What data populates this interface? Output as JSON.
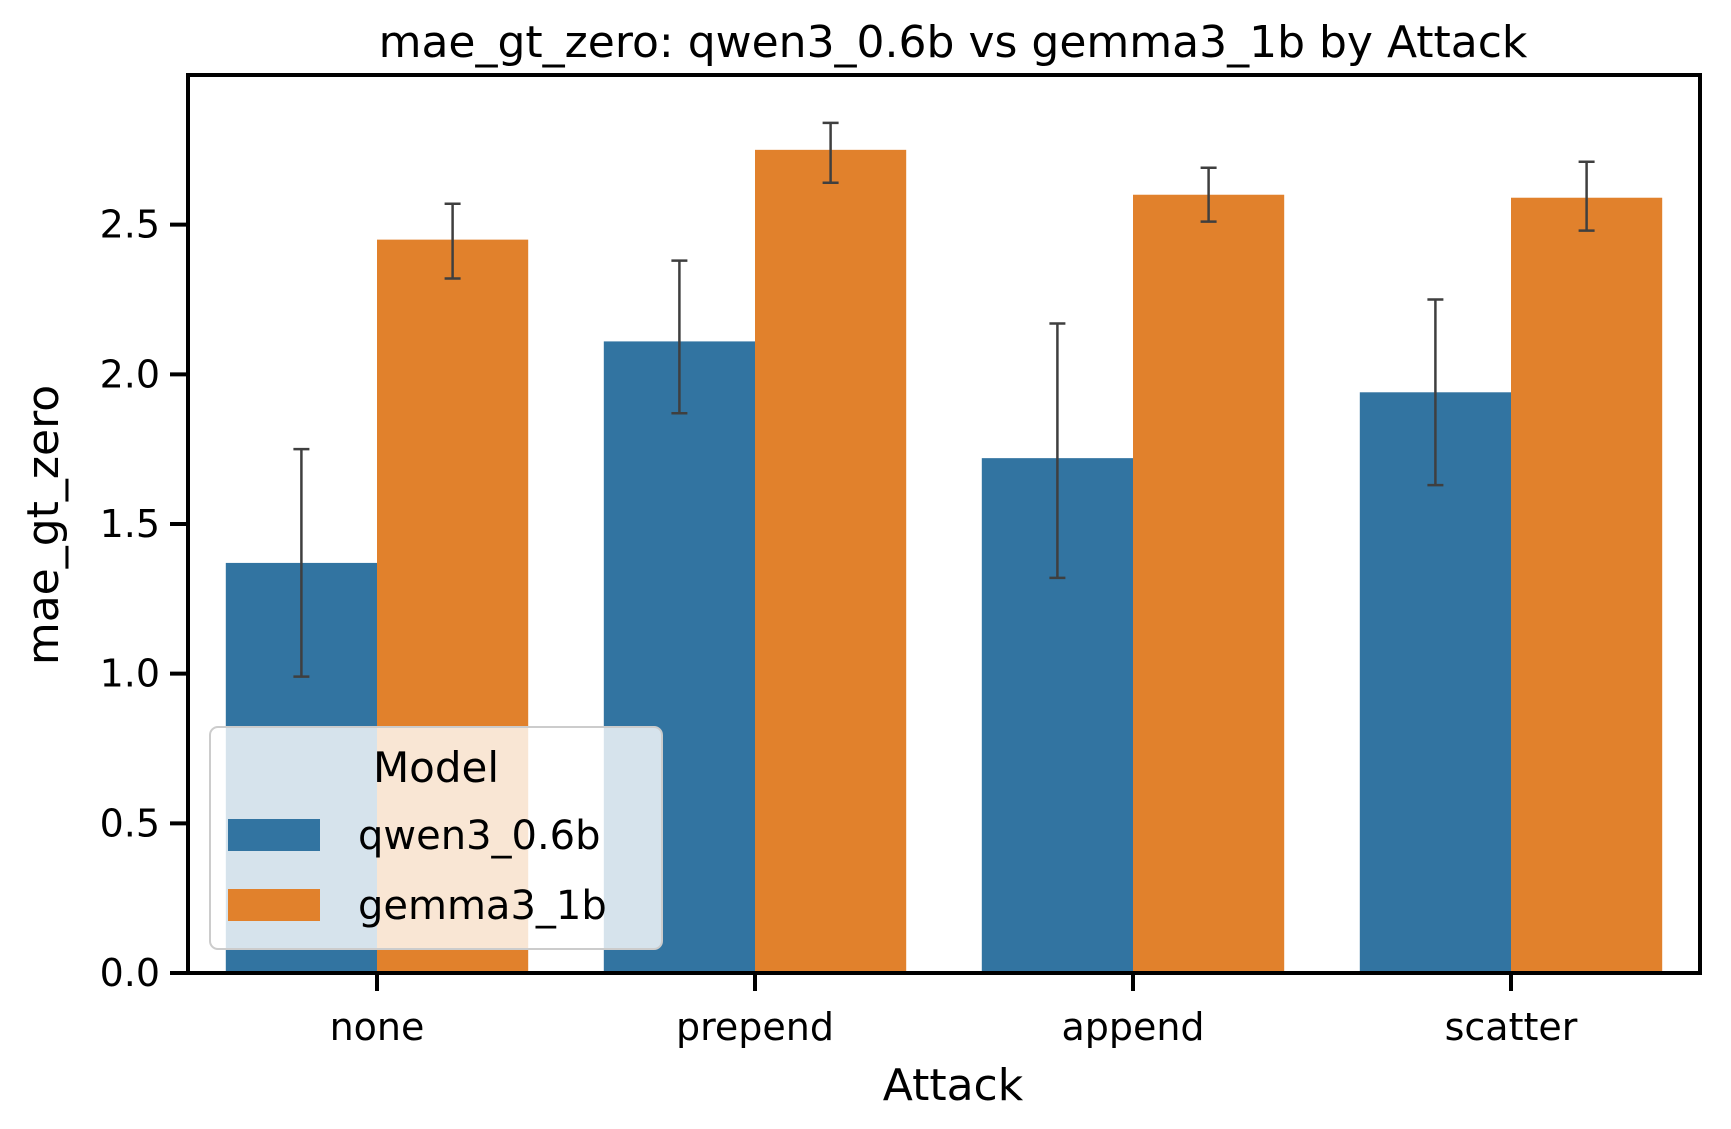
{
  "chart_data": {
    "type": "bar",
    "title": "mae_gt_zero: qwen3_0.6b vs gemma3_1b by Attack",
    "xlabel": "Attack",
    "ylabel": "mae_gt_zero",
    "categories": [
      "none",
      "prepend",
      "append",
      "scatter"
    ],
    "ylim": [
      0,
      3.0
    ],
    "yticks": [
      "0.0",
      "0.5",
      "1.0",
      "1.5",
      "2.0",
      "2.5"
    ],
    "grid": false,
    "legend": {
      "title": "Model",
      "placement": "lower-left"
    },
    "series": [
      {
        "name": "qwen3_0.6b",
        "color": "#3274a1",
        "values": [
          1.37,
          2.11,
          1.72,
          1.94
        ],
        "err_low": [
          0.99,
          1.87,
          1.32,
          1.63
        ],
        "err_high": [
          1.75,
          2.38,
          2.17,
          2.25
        ]
      },
      {
        "name": "gemma3_1b",
        "color": "#e1812c",
        "values": [
          2.45,
          2.75,
          2.6,
          2.59
        ],
        "err_low": [
          2.32,
          2.64,
          2.51,
          2.48
        ],
        "err_high": [
          2.57,
          2.84,
          2.69,
          2.71
        ]
      }
    ]
  }
}
